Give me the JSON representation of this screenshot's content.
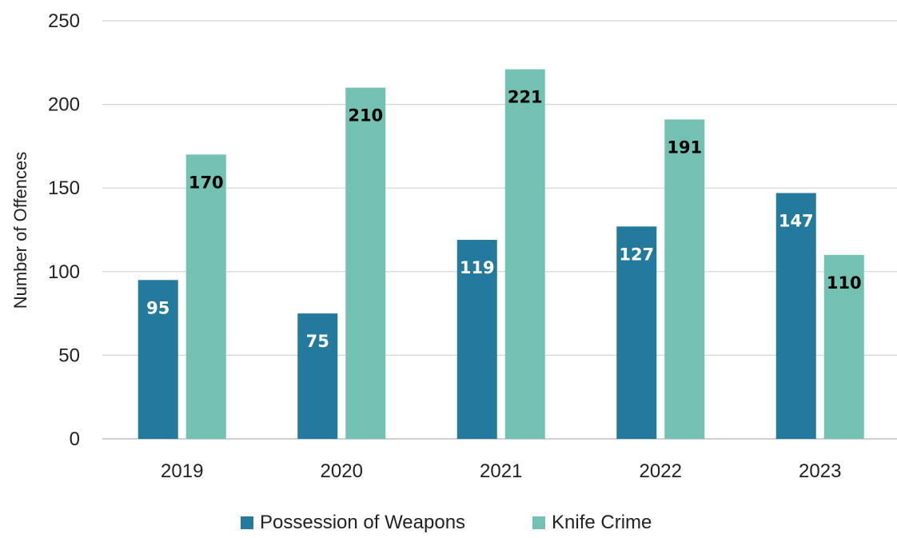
{
  "chart_data": {
    "type": "bar",
    "title": "",
    "xlabel": "",
    "ylabel": "Number of Offences",
    "categories": [
      "2019",
      "2020",
      "2021",
      "2022",
      "2023"
    ],
    "series": [
      {
        "name": "Possession of Weapons",
        "values": [
          95,
          75,
          119,
          127,
          147
        ],
        "color": "#237A9C",
        "label_color": "#ffffff"
      },
      {
        "name": "Knife Crime",
        "values": [
          170,
          210,
          221,
          191,
          110
        ],
        "color": "#72C1B2",
        "label_color": "#000000"
      }
    ],
    "ylim": [
      0,
      250
    ],
    "yticks": [
      0,
      50,
      100,
      150,
      200,
      250
    ],
    "grid": true,
    "legend_position": "bottom",
    "data_labels": true
  }
}
